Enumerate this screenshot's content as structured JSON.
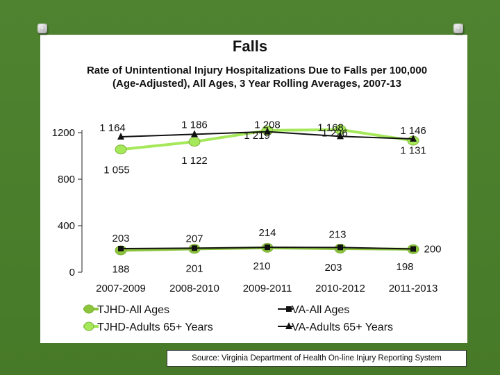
{
  "slide_title": "Falls",
  "source": "Source: Virginia Department of Health On-line Injury Reporting System",
  "chart_data": {
    "type": "line",
    "title": "Rate of Unintentional Injury Hospitalizations Due to Falls per 100,000 (Age-Adjusted), All Ages, 3 Year Rolling Averages, 2007-13",
    "categories": [
      "2007-2009",
      "2008-2010",
      "2009-2011",
      "2010-2012",
      "2011-2013"
    ],
    "yticks": [
      "0",
      "400",
      "800",
      "1200"
    ],
    "ylim": [
      0,
      1200
    ],
    "series": [
      {
        "name": "TJHD-All Ages",
        "values": [
          188,
          201,
          210,
          203,
          198
        ],
        "labels": [
          "188",
          "201",
          "210",
          "203",
          "198"
        ],
        "color": "#8cc43c",
        "marker": "circle"
      },
      {
        "name": "VA-All Ages",
        "values": [
          203,
          207,
          214,
          213,
          200
        ],
        "labels": [
          "203",
          "207",
          "214",
          "213",
          "200"
        ],
        "color": "#111111",
        "marker": "square"
      },
      {
        "name": "TJHD-Adults 65+ Years",
        "values": [
          1055,
          1122,
          1219,
          1226,
          1131
        ],
        "labels": [
          "1 055",
          "1 122",
          "1 219",
          "1 226",
          "1 131"
        ],
        "color": "#a5e85a",
        "marker": "circle"
      },
      {
        "name": "VA-Adults 65+ Years",
        "values": [
          1164,
          1186,
          1208,
          1168,
          1146
        ],
        "labels": [
          "1 164",
          "1 186",
          "1 208",
          "1 168",
          "1 146"
        ],
        "color": "#111111",
        "marker": "triangle"
      }
    ]
  }
}
